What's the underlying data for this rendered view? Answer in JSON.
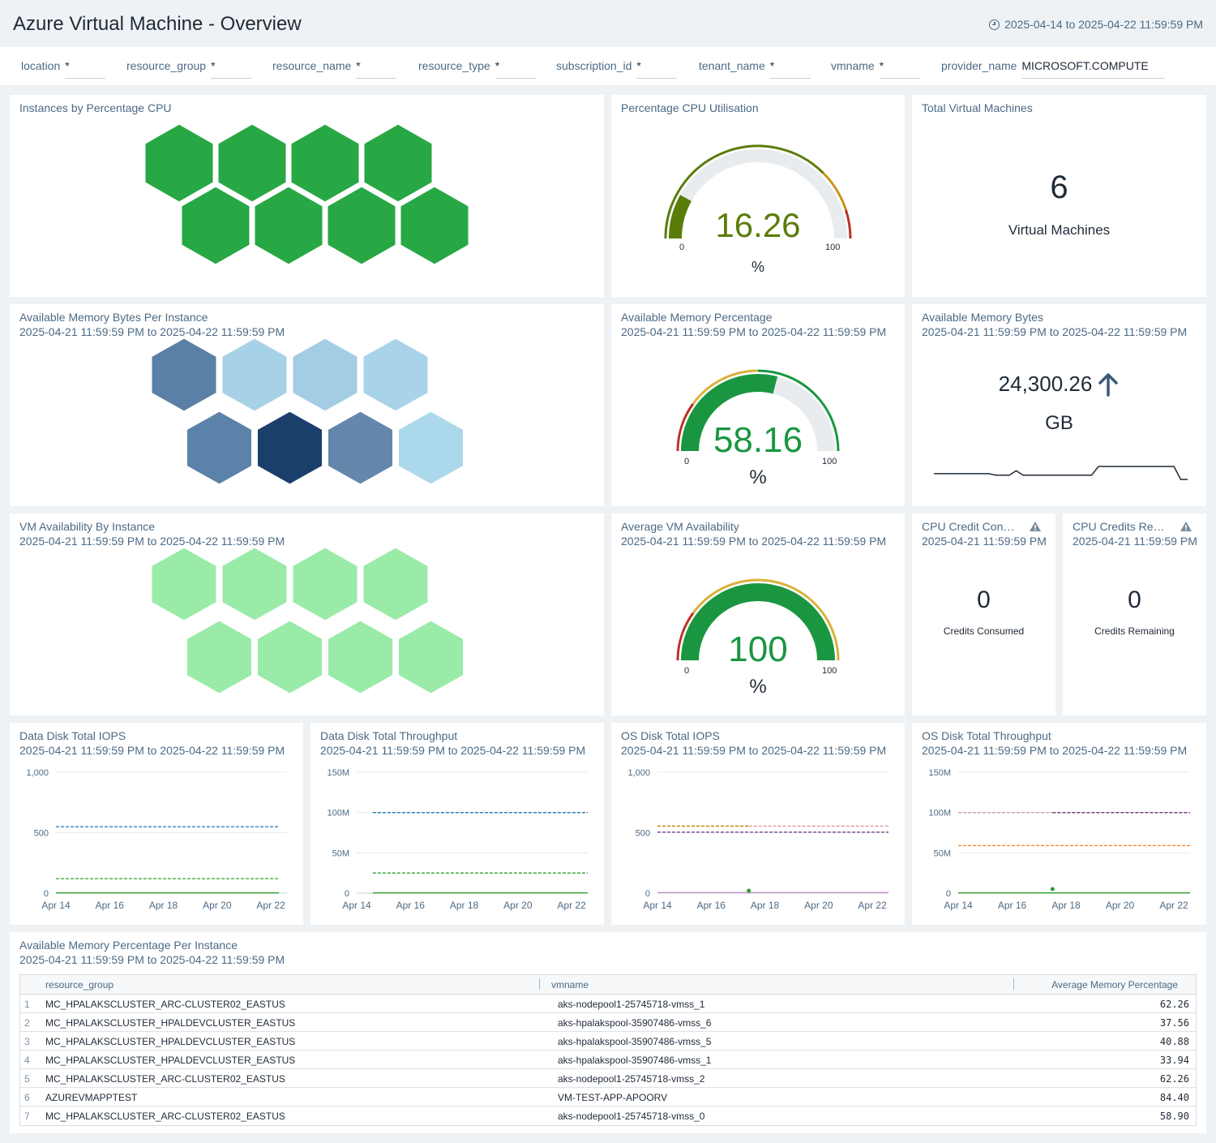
{
  "header": {
    "title": "Azure Virtual Machine - Overview",
    "time_range": "2025-04-14 to 2025-04-22 11:59:59 PM"
  },
  "filters": [
    {
      "label": "location",
      "value": "*"
    },
    {
      "label": "resource_group",
      "value": "*"
    },
    {
      "label": "resource_name",
      "value": "*"
    },
    {
      "label": "resource_type",
      "value": "*"
    },
    {
      "label": "subscription_id",
      "value": "*"
    },
    {
      "label": "tenant_name",
      "value": "*"
    },
    {
      "label": "vmname",
      "value": "*"
    },
    {
      "label": "provider_name",
      "value": "MICROSOFT.COMPUTE"
    }
  ],
  "panels": {
    "cpu_honeycomb": {
      "title": "Instances by Percentage CPU",
      "color": "#28a745",
      "count": 8
    },
    "cpu_gauge": {
      "title": "Percentage CPU Utilisation",
      "value": "16.26",
      "unit": "%",
      "min": "0",
      "max": "100",
      "fraction": 0.1626,
      "color": "#5a7d0a"
    },
    "total_vms": {
      "title": "Total Virtual Machines",
      "value": "6",
      "label": "Virtual Machines"
    },
    "mem_honeycomb": {
      "title": "Available Memory Bytes Per Instance",
      "subtitle": "2025-04-21 11:59:59 PM to 2025-04-22 11:59:59 PM",
      "colors": [
        "#5b80a5",
        "#a7d1e7",
        "#a3cde4",
        "#a9d3e8",
        "#5b82a8",
        "#1b3f6b",
        "#6587ab",
        "#acd8eb"
      ]
    },
    "mem_gauge": {
      "title": "Available Memory Percentage",
      "subtitle": "2025-04-21 11:59:59 PM to 2025-04-22 11:59:59 PM",
      "value": "58.16",
      "unit": "%",
      "min": "0",
      "max": "100",
      "fraction": 0.5816,
      "color": "#1a9641"
    },
    "mem_bytes": {
      "title": "Available Memory Bytes",
      "subtitle": "2025-04-21 11:59:59 PM to 2025-04-22 11:59:59 PM",
      "value": "24,300.26",
      "unit": "GB",
      "trend": "up-arrow-icon"
    },
    "avail_honeycomb": {
      "title": "VM Availability By Instance",
      "subtitle": "2025-04-21 11:59:59 PM to 2025-04-22 11:59:59 PM",
      "color": "#99eba7",
      "count": 8
    },
    "avail_gauge": {
      "title": "Average VM Availability",
      "subtitle": "2025-04-21 11:59:59 PM to 2025-04-22 11:59:59 PM",
      "value": "100",
      "unit": "%",
      "min": "0",
      "max": "100",
      "fraction": 1.0,
      "color": "#1a9641"
    },
    "credits_consumed": {
      "title": "CPU Credit Con…",
      "subtitle": "2025-04-21 11:59:59 PM",
      "value": "0",
      "label": "Credits Consumed",
      "icon": "warning-icon"
    },
    "credits_remaining": {
      "title": "CPU Credits Re…",
      "subtitle": "2025-04-21 11:59:59 PM",
      "value": "0",
      "label": "Credits Remaining",
      "icon": "warning-icon"
    },
    "data_disk_iops": {
      "title": "Data Disk Total IOPS",
      "subtitle": "2025-04-21 11:59:59 PM to 2025-04-22 11:59:59 PM"
    },
    "data_disk_tp": {
      "title": "Data Disk Total Throughput",
      "subtitle": "2025-04-21 11:59:59 PM to 2025-04-22 11:59:59 PM"
    },
    "os_disk_iops": {
      "title": "OS Disk Total IOPS",
      "subtitle": "2025-04-21 11:59:59 PM to 2025-04-22 11:59:59 PM"
    },
    "os_disk_tp": {
      "title": "OS Disk Total Throughput",
      "subtitle": "2025-04-21 11:59:59 PM to 2025-04-22 11:59:59 PM"
    }
  },
  "chart_data": [
    {
      "panel": "data_disk_iops",
      "type": "line",
      "x_ticks": [
        "Apr 14",
        "Apr 16",
        "Apr 18",
        "Apr 20",
        "Apr 22"
      ],
      "y_ticks": [
        "1,000",
        "500",
        "0"
      ],
      "ylim": [
        0,
        1000
      ],
      "xlim": [
        0,
        8.6
      ],
      "series": [
        {
          "color": "#1f77b4",
          "dashed": true,
          "x": [
            0,
            8.3
          ],
          "y": [
            550,
            550
          ]
        },
        {
          "color": "#2ca02c",
          "dashed": true,
          "x": [
            0,
            8.3
          ],
          "y": [
            120,
            120
          ]
        },
        {
          "color": "#2ca02c",
          "dashed": false,
          "x": [
            0,
            8.3
          ],
          "y": [
            2,
            2
          ]
        }
      ]
    },
    {
      "panel": "data_disk_tp",
      "type": "line",
      "x_ticks": [
        "Apr 14",
        "Apr 16",
        "Apr 18",
        "Apr 20",
        "Apr 22"
      ],
      "y_ticks": [
        "150M",
        "100M",
        "50M",
        "0"
      ],
      "ylim": [
        0,
        150
      ],
      "xlim": [
        0,
        8.6
      ],
      "series": [
        {
          "color": "#1f77b4",
          "dashed": true,
          "x": [
            0.6,
            8.6
          ],
          "y": [
            100,
            100
          ]
        },
        {
          "color": "#2ca02c",
          "dashed": true,
          "x": [
            0.6,
            8.6
          ],
          "y": [
            25,
            25
          ]
        },
        {
          "color": "#2ca02c",
          "dashed": false,
          "x": [
            0.6,
            8.6
          ],
          "y": [
            0.3,
            0.3
          ]
        }
      ]
    },
    {
      "panel": "os_disk_iops",
      "type": "line",
      "x_ticks": [
        "Apr 14",
        "Apr 16",
        "Apr 18",
        "Apr 20",
        "Apr 22"
      ],
      "y_ticks": [
        "1,000",
        "500",
        "0"
      ],
      "ylim": [
        0,
        1000
      ],
      "xlim": [
        0,
        8.6
      ],
      "series": [
        {
          "color": "#b8860b",
          "dashed": true,
          "x": [
            0,
            3.4
          ],
          "y": [
            555,
            555
          ]
        },
        {
          "color": "#d69aa6",
          "dashed": true,
          "x": [
            3.4,
            8.6
          ],
          "y": [
            555,
            555
          ]
        },
        {
          "color": "#7b4a8e",
          "dashed": true,
          "x": [
            0,
            8.6
          ],
          "y": [
            505,
            505
          ]
        },
        {
          "color": "#c38fc8",
          "dashed": false,
          "x": [
            0,
            8.6
          ],
          "y": [
            5,
            5
          ]
        },
        {
          "color": "#2ca02c",
          "dashed": false,
          "x": [
            3.4
          ],
          "y": [
            20
          ],
          "marker": true
        }
      ]
    },
    {
      "panel": "os_disk_tp",
      "type": "line",
      "x_ticks": [
        "Apr 14",
        "Apr 16",
        "Apr 18",
        "Apr 20",
        "Apr 22"
      ],
      "y_ticks": [
        "150M",
        "100M",
        "50M",
        "0"
      ],
      "ylim": [
        0,
        150
      ],
      "xlim": [
        0,
        8.6
      ],
      "series": [
        {
          "color": "#d69aa6",
          "dashed": true,
          "x": [
            0,
            3.5
          ],
          "y": [
            100,
            100
          ]
        },
        {
          "color": "#7b2a7e",
          "dashed": true,
          "x": [
            3.5,
            8.6
          ],
          "y": [
            100,
            100
          ]
        },
        {
          "color": "#ff7f0e",
          "dashed": true,
          "x": [
            0,
            8.6
          ],
          "y": [
            59,
            59
          ]
        },
        {
          "color": "#2ca02c",
          "dashed": false,
          "x": [
            0,
            8.6
          ],
          "y": [
            0.3,
            0.3
          ]
        },
        {
          "color": "#2ca02c",
          "dashed": false,
          "x": [
            3.5
          ],
          "y": [
            5
          ],
          "marker": true
        }
      ]
    }
  ],
  "mem_trend": {
    "type": "line",
    "color": "#1f2a37",
    "y": [
      24250,
      24250,
      24250,
      24250,
      24250,
      24250,
      24250,
      24250,
      24250,
      24240,
      24240,
      24240,
      24270,
      24240,
      24240,
      24240,
      24240,
      24240,
      24240,
      24240,
      24240,
      24240,
      24240,
      24240,
      24300,
      24300,
      24300,
      24300,
      24300,
      24300,
      24300,
      24300,
      24300,
      24300,
      24300,
      24300,
      24210,
      24210
    ]
  },
  "table": {
    "title": "Available Memory Percentage Per Instance",
    "subtitle": "2025-04-21 11:59:59 PM to 2025-04-22 11:59:59 PM",
    "columns": [
      "resource_group",
      "vmname",
      "Average Memory Percentage"
    ],
    "rows": [
      {
        "n": "1",
        "resource_group": "MC_HPALAKSCLUSTER_ARC-CLUSTER02_EASTUS",
        "vmname": "aks-nodepool1-25745718-vmss_1",
        "value": "62.26"
      },
      {
        "n": "2",
        "resource_group": "MC_HPALAKSCLUSTER_HPALDEVCLUSTER_EASTUS",
        "vmname": "aks-hpalakspool-35907486-vmss_6",
        "value": "37.56"
      },
      {
        "n": "3",
        "resource_group": "MC_HPALAKSCLUSTER_HPALDEVCLUSTER_EASTUS",
        "vmname": "aks-hpalakspool-35907486-vmss_5",
        "value": "40.88"
      },
      {
        "n": "4",
        "resource_group": "MC_HPALAKSCLUSTER_HPALDEVCLUSTER_EASTUS",
        "vmname": "aks-hpalakspool-35907486-vmss_1",
        "value": "33.94"
      },
      {
        "n": "5",
        "resource_group": "MC_HPALAKSCLUSTER_ARC-CLUSTER02_EASTUS",
        "vmname": "aks-nodepool1-25745718-vmss_2",
        "value": "62.26"
      },
      {
        "n": "6",
        "resource_group": "AZUREVMAPPTEST",
        "vmname": "VM-TEST-APP-APOORV",
        "value": "84.40"
      },
      {
        "n": "7",
        "resource_group": "MC_HPALAKSCLUSTER_ARC-CLUSTER02_EASTUS",
        "vmname": "aks-nodepool1-25745718-vmss_0",
        "value": "58.90"
      }
    ]
  }
}
